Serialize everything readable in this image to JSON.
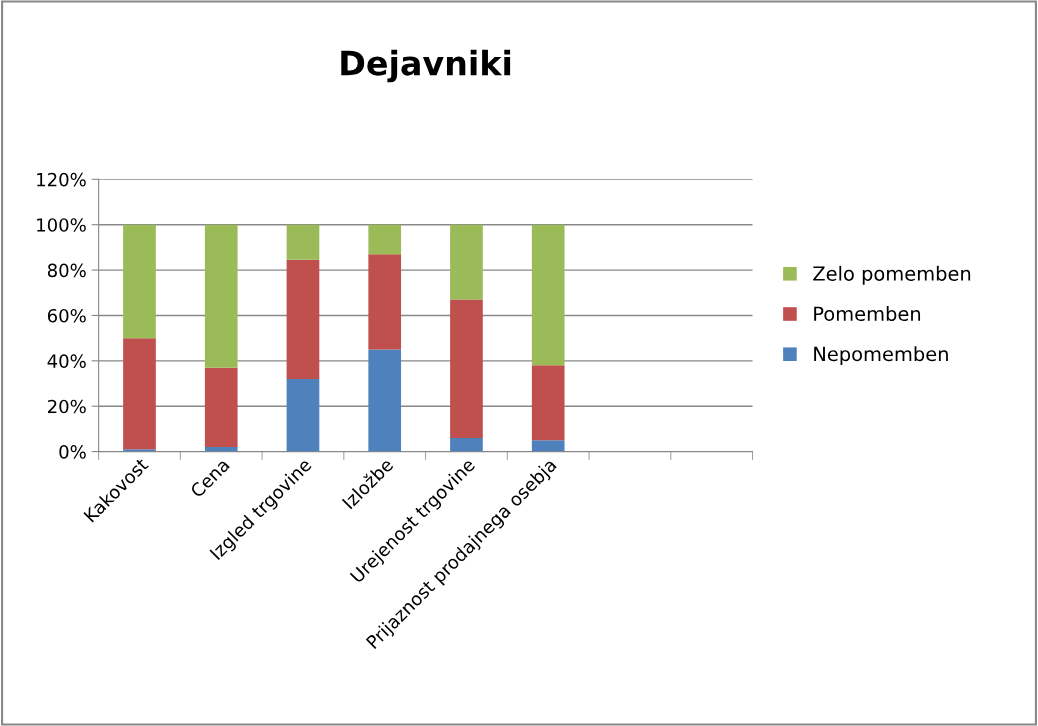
{
  "chart_data": {
    "type": "bar",
    "title": "Dejavniki",
    "stacked": true,
    "categories": [
      "Kakovost",
      "Cena",
      "Izgled trgovine",
      "Izložbe",
      "Urejenost trgovine",
      "Prijaznost prodajnega osebja",
      null,
      null
    ],
    "series": [
      {
        "name": "Nepomemben",
        "color": "#4f81bd",
        "values": [
          1,
          2,
          32,
          45,
          6,
          5,
          null,
          null
        ]
      },
      {
        "name": "Pomemben",
        "color": "#c0504d",
        "values": [
          49,
          35,
          52.5,
          42,
          61,
          33,
          null,
          null
        ]
      },
      {
        "name": "Zelo pomemben",
        "color": "#9bbb59",
        "values": [
          50,
          63,
          15.5,
          13,
          33,
          62,
          null,
          null
        ]
      }
    ],
    "ylim": [
      0,
      120
    ],
    "yticks": [
      {
        "value": 0,
        "label": "0%"
      },
      {
        "value": 20,
        "label": "20%"
      },
      {
        "value": 40,
        "label": "40%"
      },
      {
        "value": 60,
        "label": "60%"
      },
      {
        "value": 80,
        "label": "80%"
      },
      {
        "value": 100,
        "label": "100%"
      },
      {
        "value": 120,
        "label": "120%"
      }
    ],
    "grid": "y",
    "legend": "right"
  }
}
